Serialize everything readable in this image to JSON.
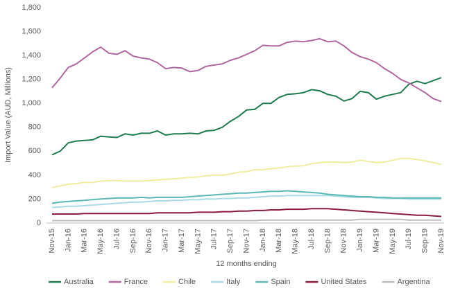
{
  "chart_data": {
    "type": "line",
    "y_label": "Import Value (AUD, Millions)",
    "x_label": "12 months ending",
    "categories": [
      "Nov-15",
      null,
      "Jan-16",
      null,
      "Mar-16",
      null,
      "May-16",
      null,
      "Jul-16",
      null,
      "Sep-16",
      null,
      "Nov-16",
      null,
      "Jan-17",
      null,
      "Mar-17",
      null,
      "May-17",
      null,
      "Jul-17",
      null,
      "Sep-17",
      null,
      "Nov-17",
      null,
      "Jan-18",
      null,
      "Mar-18",
      null,
      "May-18",
      null,
      "Jul-18",
      null,
      "Sep-18",
      null,
      "Nov-18",
      null,
      "Jan-19",
      null,
      "Mar-19",
      null,
      "May-19",
      null,
      "Jul-19",
      null,
      "Sep-19",
      null,
      "Nov-19"
    ],
    "ylim": [
      0,
      1800
    ],
    "yticks": [
      0,
      200,
      400,
      600,
      800,
      {
        "value": 1000,
        "label": "1,000"
      },
      {
        "value": 1200,
        "label": "1,200"
      },
      {
        "value": 1400,
        "label": "1,400"
      },
      {
        "value": 1600,
        "label": "1,600"
      },
      {
        "value": 1800,
        "label": "1,800"
      }
    ],
    "grid": false,
    "legend": "bottom",
    "series": [
      {
        "name": "Australia",
        "color": "#1e7b4f",
        "values": [
          570,
          600,
          670,
          685,
          690,
          695,
          725,
          720,
          715,
          745,
          735,
          750,
          750,
          770,
          735,
          745,
          745,
          750,
          745,
          770,
          775,
          800,
          850,
          890,
          945,
          950,
          1000,
          1000,
          1050,
          1075,
          1080,
          1090,
          1115,
          1105,
          1075,
          1060,
          1020,
          1040,
          1100,
          1090,
          1035,
          1060,
          1075,
          1090,
          1160,
          1185,
          1165,
          1190,
          1215
        ]
      },
      {
        "name": "France",
        "color": "#b0679f",
        "values": [
          1130,
          1210,
          1300,
          1330,
          1380,
          1430,
          1470,
          1420,
          1410,
          1440,
          1395,
          1380,
          1370,
          1340,
          1290,
          1300,
          1295,
          1265,
          1275,
          1310,
          1320,
          1330,
          1360,
          1380,
          1410,
          1440,
          1485,
          1480,
          1480,
          1510,
          1520,
          1515,
          1525,
          1540,
          1515,
          1520,
          1480,
          1425,
          1390,
          1370,
          1340,
          1290,
          1250,
          1200,
          1170,
          1130,
          1090,
          1040,
          1015
        ]
      },
      {
        "name": "Chile",
        "color": "#f0eea0",
        "values": [
          295,
          310,
          325,
          330,
          340,
          340,
          350,
          355,
          355,
          350,
          350,
          350,
          355,
          360,
          365,
          370,
          375,
          380,
          385,
          395,
          400,
          400,
          410,
          425,
          430,
          445,
          445,
          455,
          460,
          470,
          475,
          480,
          495,
          505,
          510,
          510,
          505,
          510,
          525,
          515,
          505,
          510,
          525,
          540,
          540,
          530,
          520,
          505,
          490
        ]
      },
      {
        "name": "Italy",
        "color": "#a9dbe6",
        "values": [
          130,
          135,
          140,
          140,
          145,
          150,
          155,
          160,
          165,
          170,
          175,
          175,
          180,
          185,
          185,
          190,
          190,
          195,
          195,
          200,
          200,
          205,
          205,
          210,
          210,
          215,
          220,
          225,
          225,
          230,
          230,
          230,
          230,
          230,
          230,
          225,
          220,
          215,
          215,
          215,
          210,
          205,
          205,
          205,
          200,
          200,
          200,
          200,
          200
        ]
      },
      {
        "name": "Spain",
        "color": "#5bb8b2",
        "values": [
          165,
          175,
          180,
          185,
          190,
          195,
          200,
          205,
          210,
          210,
          210,
          215,
          210,
          215,
          215,
          215,
          215,
          220,
          225,
          230,
          235,
          240,
          245,
          250,
          250,
          255,
          260,
          265,
          265,
          270,
          265,
          260,
          255,
          250,
          240,
          235,
          230,
          225,
          220,
          220,
          215,
          215,
          210,
          210,
          210,
          210,
          210,
          210,
          210
        ]
      },
      {
        "name": "United States",
        "color": "#8a1c3b",
        "values": [
          75,
          75,
          75,
          75,
          80,
          80,
          80,
          80,
          80,
          80,
          80,
          80,
          80,
          85,
          85,
          85,
          85,
          85,
          90,
          90,
          90,
          95,
          95,
          100,
          100,
          105,
          105,
          110,
          110,
          115,
          115,
          115,
          120,
          120,
          120,
          115,
          110,
          105,
          100,
          95,
          90,
          85,
          80,
          75,
          70,
          65,
          65,
          60,
          55
        ]
      },
      {
        "name": "Argentina",
        "color": "#bdbdbd",
        "values": [
          20,
          20,
          20,
          20,
          20,
          20,
          20,
          20,
          20,
          20,
          20,
          20,
          20,
          20,
          20,
          20,
          20,
          20,
          20,
          20,
          20,
          20,
          20,
          20,
          20,
          20,
          25,
          25,
          25,
          25,
          25,
          25,
          25,
          25,
          25,
          25,
          25,
          25,
          30,
          30,
          30,
          30,
          30,
          30,
          25,
          25,
          25,
          25,
          25
        ]
      }
    ]
  }
}
